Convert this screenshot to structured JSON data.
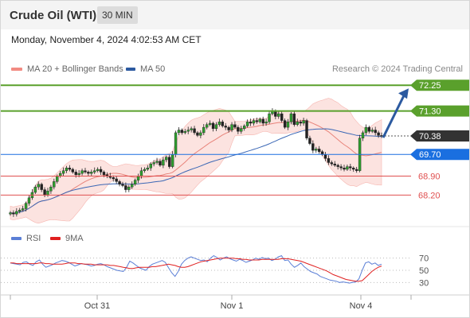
{
  "header": {
    "title": "Crude Oil (WTI)",
    "interval": "30 MIN"
  },
  "timestamp": "Monday, November 4, 2024 4:02:53 AM CET",
  "legend": {
    "ma20_label": "MA 20 + Bollinger Bands",
    "ma50_label": "MA 50",
    "ma20_color": "#f28b82",
    "ma50_color": "#2c5aa0",
    "credit": "Research © 2024 Trading Central"
  },
  "rsi_legend": {
    "rsi_label": "RSI",
    "ma_label": "9MA",
    "rsi_color": "#5b7fd6",
    "ma_color": "#e02020"
  },
  "chart_data": [
    {
      "type": "candlestick",
      "y_range": [
        67.45,
        72.55
      ],
      "levels": [
        {
          "value": 72.25,
          "label": "72.25",
          "style": "resistance",
          "color": "#5aa02c"
        },
        {
          "value": 71.3,
          "label": "71.30",
          "style": "resistance",
          "color": "#5aa02c"
        },
        {
          "value": 70.38,
          "label": "70.38",
          "style": "last_price",
          "color": "#333333"
        },
        {
          "value": 69.7,
          "label": "69.70",
          "style": "pivot",
          "color": "#1a6fe0"
        },
        {
          "value": 68.9,
          "label": "68.90",
          "style": "support",
          "color": "#e05050"
        },
        {
          "value": 68.2,
          "label": "68.20",
          "style": "support",
          "color": "#e05050"
        }
      ],
      "x_labels": [
        "Oct 31",
        "Nov 1",
        "Nov 4"
      ],
      "closes": [
        67.55,
        67.5,
        67.6,
        67.65,
        67.7,
        67.9,
        68.1,
        68.3,
        68.5,
        68.6,
        68.4,
        68.2,
        68.35,
        68.5,
        68.7,
        68.9,
        69.0,
        69.1,
        69.2,
        69.15,
        69.05,
        68.95,
        69.0,
        69.1,
        69.05,
        69.0,
        69.05,
        69.1,
        69.15,
        69.05,
        68.95,
        68.9,
        68.85,
        68.8,
        68.7,
        68.6,
        68.55,
        68.4,
        68.5,
        68.6,
        68.75,
        68.9,
        69.1,
        69.15,
        69.2,
        69.35,
        69.4,
        69.45,
        69.3,
        69.5,
        69.6,
        69.25,
        69.7,
        70.5,
        70.6,
        70.5,
        70.55,
        70.6,
        70.65,
        70.5,
        70.4,
        70.5,
        70.7,
        70.8,
        70.85,
        70.65,
        70.8,
        70.9,
        70.75,
        70.7,
        70.6,
        70.8,
        70.7,
        70.55,
        70.65,
        70.75,
        70.9,
        70.85,
        70.95,
        70.9,
        71.0,
        70.85,
        70.9,
        71.2,
        71.3,
        71.1,
        71.2,
        70.95,
        70.7,
        70.9,
        71.2,
        70.8,
        70.9,
        70.85,
        70.95,
        70.3,
        70.1,
        69.85,
        69.9,
        69.8,
        69.7,
        69.55,
        69.4,
        69.35,
        69.3,
        69.25,
        69.2,
        69.15,
        69.25,
        69.2,
        69.15,
        69.1,
        70.3,
        70.5,
        70.7,
        70.55,
        70.6,
        70.5,
        70.4,
        70.38
      ]
    },
    {
      "type": "line",
      "name": "RSI",
      "y_range": [
        20,
        80
      ],
      "y_ticks": [
        70,
        50,
        30
      ],
      "series": [
        {
          "name": "RSI",
          "values": [
            62,
            61,
            60,
            59,
            63,
            64,
            60,
            58,
            64,
            67,
            60,
            55,
            57,
            59,
            62,
            64,
            66,
            65,
            63,
            60,
            57,
            59,
            61,
            60,
            59,
            57,
            58,
            60,
            61,
            59,
            56,
            54,
            52,
            50,
            49,
            48,
            55,
            65,
            62,
            58,
            54,
            52,
            50,
            56,
            60,
            62,
            64,
            66,
            63,
            54,
            46,
            40,
            48,
            60,
            66,
            70,
            72,
            70,
            68,
            66,
            67,
            64,
            70,
            74,
            71,
            67,
            70,
            72,
            69,
            67,
            65,
            68,
            66,
            63,
            65,
            67,
            70,
            68,
            71,
            69,
            70,
            66,
            68,
            72,
            74,
            66,
            67,
            60,
            55,
            58,
            62,
            56,
            52,
            48,
            46,
            44,
            40,
            38,
            36,
            34,
            33,
            32,
            30,
            31,
            30,
            29,
            30,
            31,
            36,
            50,
            62,
            64,
            60,
            62,
            58,
            60
          ]
        },
        {
          "name": "9MA",
          "values": [
            62,
            62,
            61,
            61,
            61,
            61,
            61,
            61,
            61,
            62,
            62,
            61,
            61,
            60,
            60,
            60,
            60,
            61,
            62,
            62,
            62,
            61,
            61,
            60,
            60,
            60,
            59,
            59,
            59,
            59,
            59,
            58,
            58,
            57,
            56,
            55,
            54,
            53,
            53,
            54,
            55,
            55,
            55,
            55,
            56,
            56,
            57,
            58,
            59,
            60,
            59,
            58,
            56,
            55,
            55,
            56,
            58,
            60,
            62,
            64,
            65,
            66,
            67,
            68,
            69,
            70,
            70,
            70,
            70,
            70,
            69,
            69,
            68,
            68,
            67,
            67,
            67,
            67,
            68,
            68,
            68,
            68,
            68,
            68,
            69,
            69,
            69,
            68,
            67,
            66,
            65,
            63,
            61,
            59,
            57,
            55,
            53,
            51,
            49,
            46,
            43,
            41,
            39,
            37,
            35,
            34,
            33,
            32,
            32,
            33,
            38,
            43,
            48,
            52,
            55,
            57
          ]
        }
      ]
    }
  ]
}
